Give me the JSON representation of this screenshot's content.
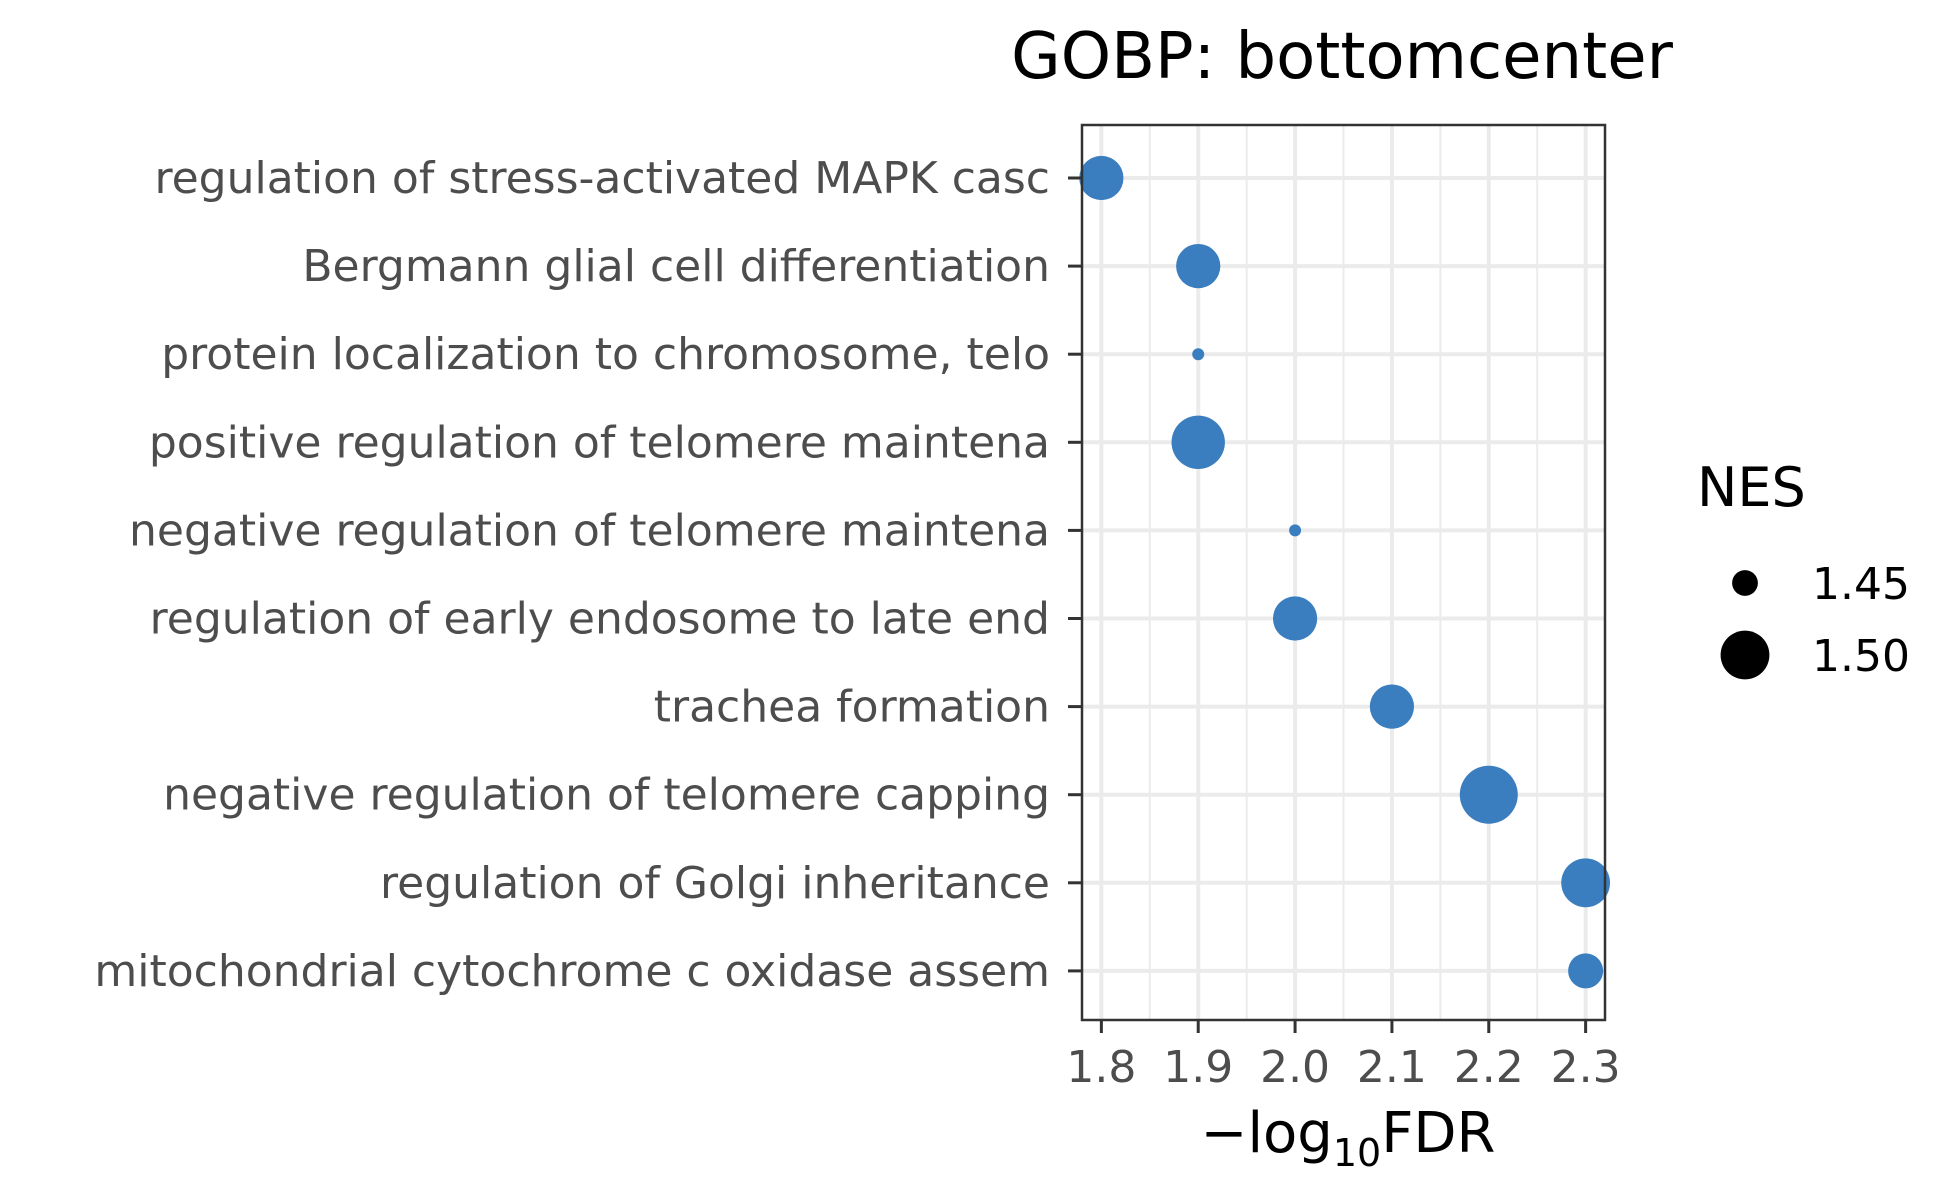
{
  "chart_data": {
    "type": "scatter",
    "title": "GOBP: bottomcenter",
    "xlabel": {
      "prefix": "−log",
      "subscript": "10",
      "suffix": "FDR"
    },
    "xlim": [
      1.78,
      2.32
    ],
    "xticks": [
      1.8,
      1.9,
      2.0,
      2.1,
      2.2,
      2.3
    ],
    "xtick_labels": [
      "1.8",
      "1.9",
      "2.0",
      "2.1",
      "2.2",
      "2.3"
    ],
    "grid": true,
    "point_color": "#3a7ebf",
    "categories": [
      "regulation of stress-activated MAPK casc",
      "Bergmann glial cell differentiation",
      "protein localization to chromosome, telo",
      "positive regulation of telomere maintena",
      "negative regulation of telomere maintena",
      "regulation of early endosome to late end",
      "trachea formation",
      "negative regulation of telomere capping",
      "regulation of Golgi inheritance",
      "mitochondrial cytochrome c oxidase assem"
    ],
    "points": [
      {
        "x": 1.8,
        "nes": 1.49
      },
      {
        "x": 1.9,
        "nes": 1.49
      },
      {
        "x": 1.9,
        "nes": 1.42
      },
      {
        "x": 1.9,
        "nes": 1.51
      },
      {
        "x": 2.0,
        "nes": 1.42
      },
      {
        "x": 2.0,
        "nes": 1.49
      },
      {
        "x": 2.1,
        "nes": 1.49
      },
      {
        "x": 2.2,
        "nes": 1.52
      },
      {
        "x": 2.3,
        "nes": 1.5
      },
      {
        "x": 2.3,
        "nes": 1.47
      }
    ],
    "legend": {
      "title": "NES",
      "placement": "right",
      "entries": [
        {
          "label": "1.45",
          "nes": 1.45
        },
        {
          "label": "1.50",
          "nes": 1.5
        }
      ]
    }
  }
}
